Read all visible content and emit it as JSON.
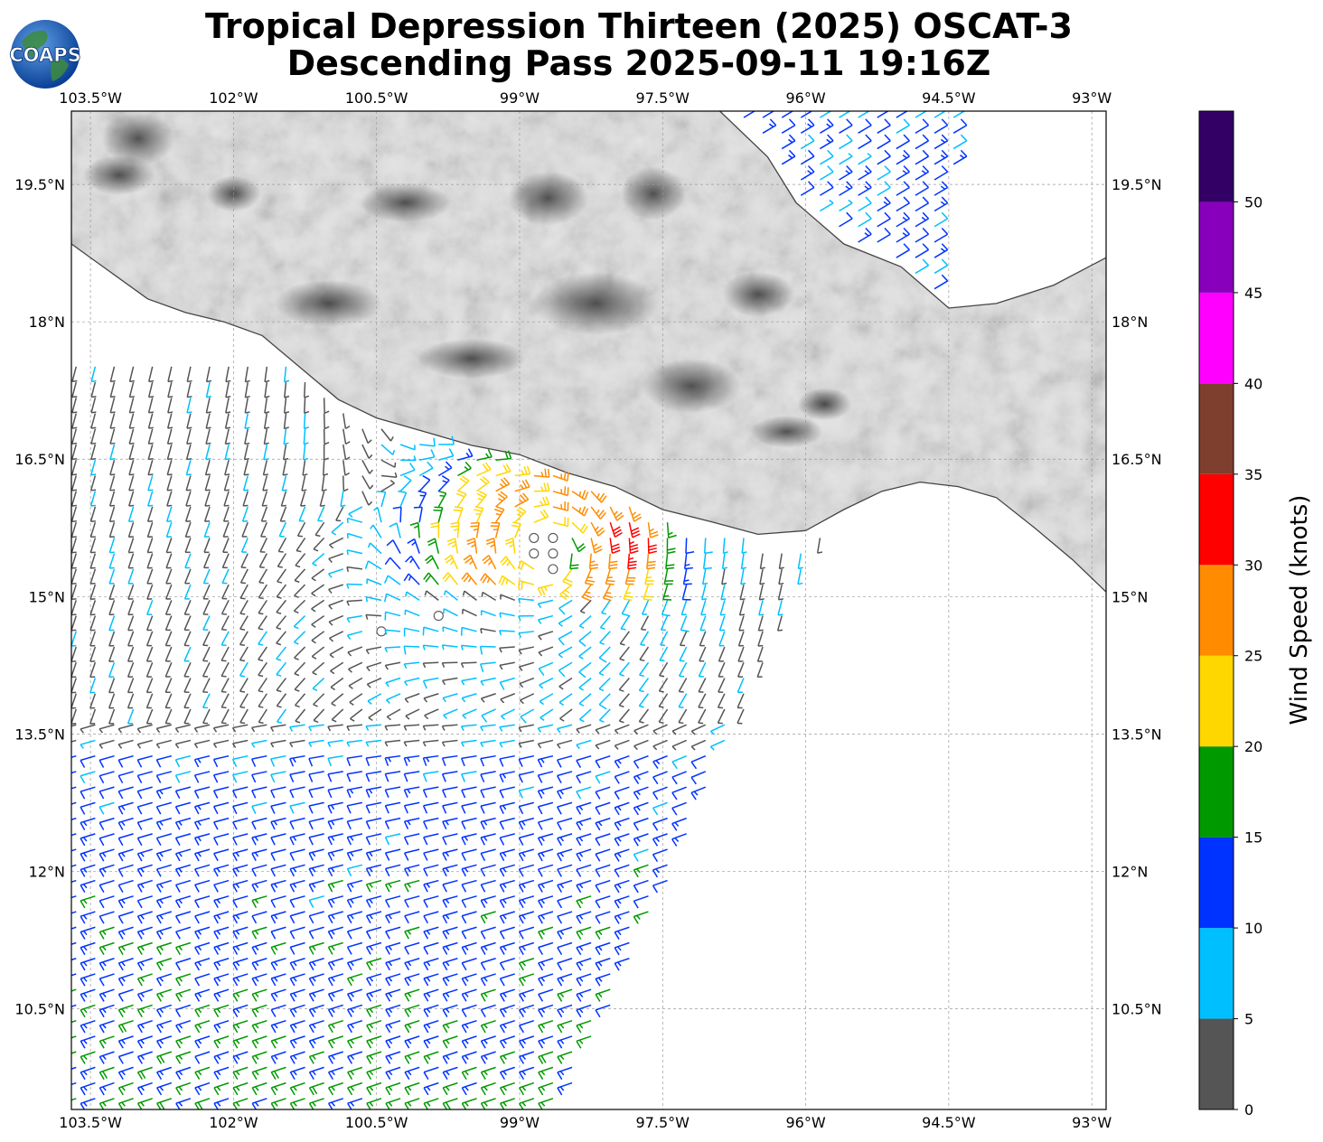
{
  "title_line1": "Tropical Depression Thirteen (2025) OSCAT-3",
  "title_line2": "Descending Pass 2025-09-11 19:16Z",
  "logo": {
    "text": "COAPS",
    "icon": "globe-logo-icon"
  },
  "map": {
    "lon_range": [
      -103.7,
      -92.85
    ],
    "lat_range": [
      9.4,
      20.3
    ],
    "lon_ticks": [
      "103.5°W",
      "102°W",
      "100.5°W",
      "99°W",
      "97.5°W",
      "96°W",
      "94.5°W",
      "93°W"
    ],
    "lat_ticks": [
      "19.5°N",
      "18°N",
      "16.5°N",
      "15°N",
      "13.5°N",
      "12°N",
      "10.5°N"
    ],
    "gridlines": "dashed",
    "land_shading": "grayscale elevation"
  },
  "colorbar": {
    "label": "Wind Speed (knots)",
    "tick_labels": [
      "0",
      "5",
      "10",
      "15",
      "20",
      "25",
      "30",
      "35",
      "40",
      "45",
      "50"
    ],
    "bins": [
      {
        "min": 0,
        "max": 5,
        "color": "#555555"
      },
      {
        "min": 5,
        "max": 10,
        "color": "#00bfff"
      },
      {
        "min": 10,
        "max": 15,
        "color": "#0033ff"
      },
      {
        "min": 15,
        "max": 20,
        "color": "#009900"
      },
      {
        "min": 20,
        "max": 25,
        "color": "#ffd700"
      },
      {
        "min": 25,
        "max": 30,
        "color": "#ff8c00"
      },
      {
        "min": 30,
        "max": 35,
        "color": "#ff0000"
      },
      {
        "min": 35,
        "max": 40,
        "color": "#7f3f2f"
      },
      {
        "min": 40,
        "max": 45,
        "color": "#ff00ff"
      },
      {
        "min": 45,
        "max": 50,
        "color": "#8800bb"
      },
      {
        "min": 50,
        "max": 55,
        "color": "#330066"
      }
    ]
  },
  "wind_field": {
    "center_lon": -98.7,
    "center_lat": 15.5,
    "max_speed_kt": 33,
    "max_speed_lon": -97.8,
    "max_speed_lat": 15.6,
    "southern_flow": "westerly 10-15 kt"
  }
}
